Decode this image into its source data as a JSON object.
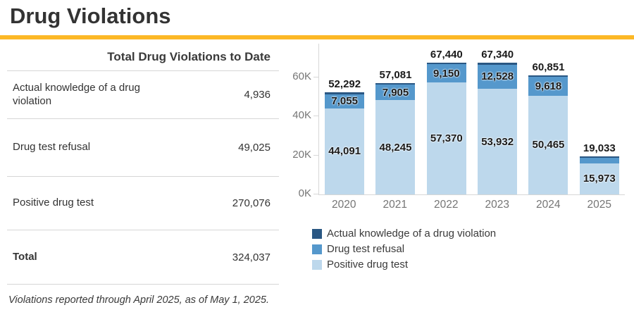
{
  "page": {
    "title": "Drug Violations",
    "accent_color": "#FCB826"
  },
  "table": {
    "header": "Total Drug Violations to Date",
    "rows": [
      {
        "label": "Actual knowledge of a drug violation",
        "value": "4,936"
      },
      {
        "label": "Drug test refusal",
        "value": "49,025"
      },
      {
        "label": "Positive drug test",
        "value": "270,076"
      },
      {
        "label": "Total",
        "value": "324,037"
      }
    ],
    "footnote": "Violations reported through April 2025, as of May 1, 2025."
  },
  "chart_data": {
    "type": "bar",
    "stacked": true,
    "title": "",
    "xlabel": "",
    "ylabel": "",
    "categories": [
      "2020",
      "2021",
      "2022",
      "2023",
      "2024",
      "2025"
    ],
    "series": [
      {
        "name": "Actual knowledge of a drug violation",
        "color": "#2A5783",
        "values": [
          1146,
          931,
          920,
          880,
          768,
          291
        ],
        "labels": [
          "",
          "",
          "",
          "",
          "",
          ""
        ]
      },
      {
        "name": "Drug test refusal",
        "color": "#5598CC",
        "values": [
          7055,
          7905,
          9150,
          12528,
          9618,
          2769
        ],
        "labels": [
          "7,055",
          "7,905",
          "9,150",
          "12,528",
          "9,618",
          ""
        ]
      },
      {
        "name": "Positive drug test",
        "color": "#BDD8EC",
        "values": [
          44091,
          48245,
          57370,
          53932,
          50465,
          15973
        ],
        "labels": [
          "44,091",
          "48,245",
          "57,370",
          "53,932",
          "50,465",
          "15,973"
        ]
      }
    ],
    "totals": [
      52292,
      57081,
      67440,
      67340,
      60851,
      19033
    ],
    "total_labels": [
      "52,292",
      "57,081",
      "67,440",
      "67,340",
      "60,851",
      "19,033"
    ],
    "y_ticks": [
      "0K",
      "20K",
      "40K",
      "60K"
    ],
    "y_tick_values": [
      0,
      20000,
      40000,
      60000
    ],
    "ylim": [
      0,
      72000
    ],
    "grid": false,
    "legend_position": "bottom-left"
  }
}
